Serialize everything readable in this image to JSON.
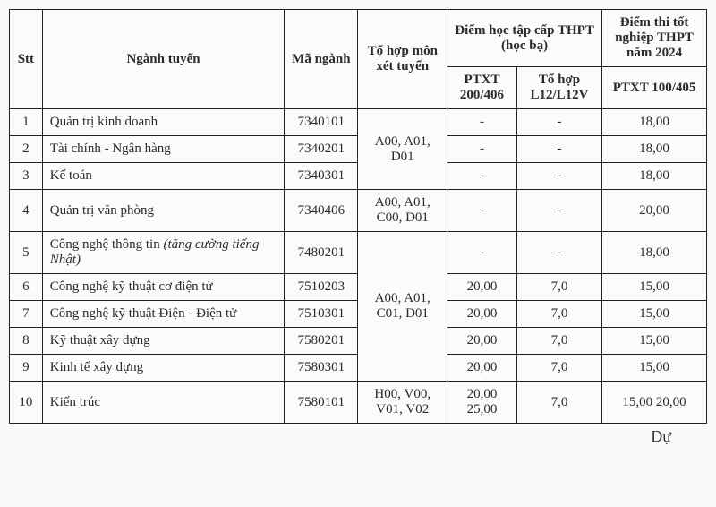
{
  "headers": {
    "stt": "Stt",
    "major": "Ngành tuyển",
    "code": "Mã ngành",
    "combo": "Tổ hợp môn xét tuyển",
    "hocba_group": "Điểm học tập cấp THPT (học bạ)",
    "ptxt1": "PTXT 200/406",
    "tohop": "Tổ hợp L12/L12V",
    "thpt_group": "Điểm thi tốt nghiệp THPT năm 2024",
    "ptxt2": "PTXT 100/405"
  },
  "combo_groups": {
    "g1": "A00, A01, D01",
    "g2": "A00, A01, C00, D01",
    "g3": "A00, A01, C01, D01",
    "g4": "H00, V00, V01, V02"
  },
  "rows": [
    {
      "stt": "1",
      "major": "Quản trị kinh doanh",
      "code": "7340101",
      "ptxt1": "-",
      "tohop": "-",
      "ptxt2": "18,00"
    },
    {
      "stt": "2",
      "major": "Tài chính - Ngân hàng",
      "code": "7340201",
      "ptxt1": "-",
      "tohop": "-",
      "ptxt2": "18,00"
    },
    {
      "stt": "3",
      "major": "Kế toán",
      "code": "7340301",
      "ptxt1": "-",
      "tohop": "-",
      "ptxt2": "18,00"
    },
    {
      "stt": "4",
      "major": "Quản trị văn phòng",
      "code": "7340406",
      "ptxt1": "-",
      "tohop": "-",
      "ptxt2": "20,00"
    },
    {
      "stt": "5",
      "major_pre": "Công nghệ thông tin ",
      "major_ital": "(tăng cường tiếng Nhật)",
      "code": "7480201",
      "ptxt1": "-",
      "tohop": "-",
      "ptxt2": "18,00"
    },
    {
      "stt": "6",
      "major": "Công nghệ kỹ thuật cơ điện tử",
      "code": "7510203",
      "ptxt1": "20,00",
      "tohop": "7,0",
      "ptxt2": "15,00"
    },
    {
      "stt": "7",
      "major": "Công nghệ kỹ thuật Điện - Điện tử",
      "code": "7510301",
      "ptxt1": "20,00",
      "tohop": "7,0",
      "ptxt2": "15,00"
    },
    {
      "stt": "8",
      "major": "Kỹ thuật xây dựng",
      "code": "7580201",
      "ptxt1": "20,00",
      "tohop": "7,0",
      "ptxt2": "15,00"
    },
    {
      "stt": "9",
      "major": "Kinh tế xây dựng",
      "code": "7580301",
      "ptxt1": "20,00",
      "tohop": "7,0",
      "ptxt2": "15,00"
    },
    {
      "stt": "10",
      "major": "Kiến trúc",
      "code": "7580101",
      "ptxt1": "20,00 25,00",
      "tohop": "7,0",
      "ptxt2": "15,00 20,00"
    }
  ],
  "signature": "Dự"
}
